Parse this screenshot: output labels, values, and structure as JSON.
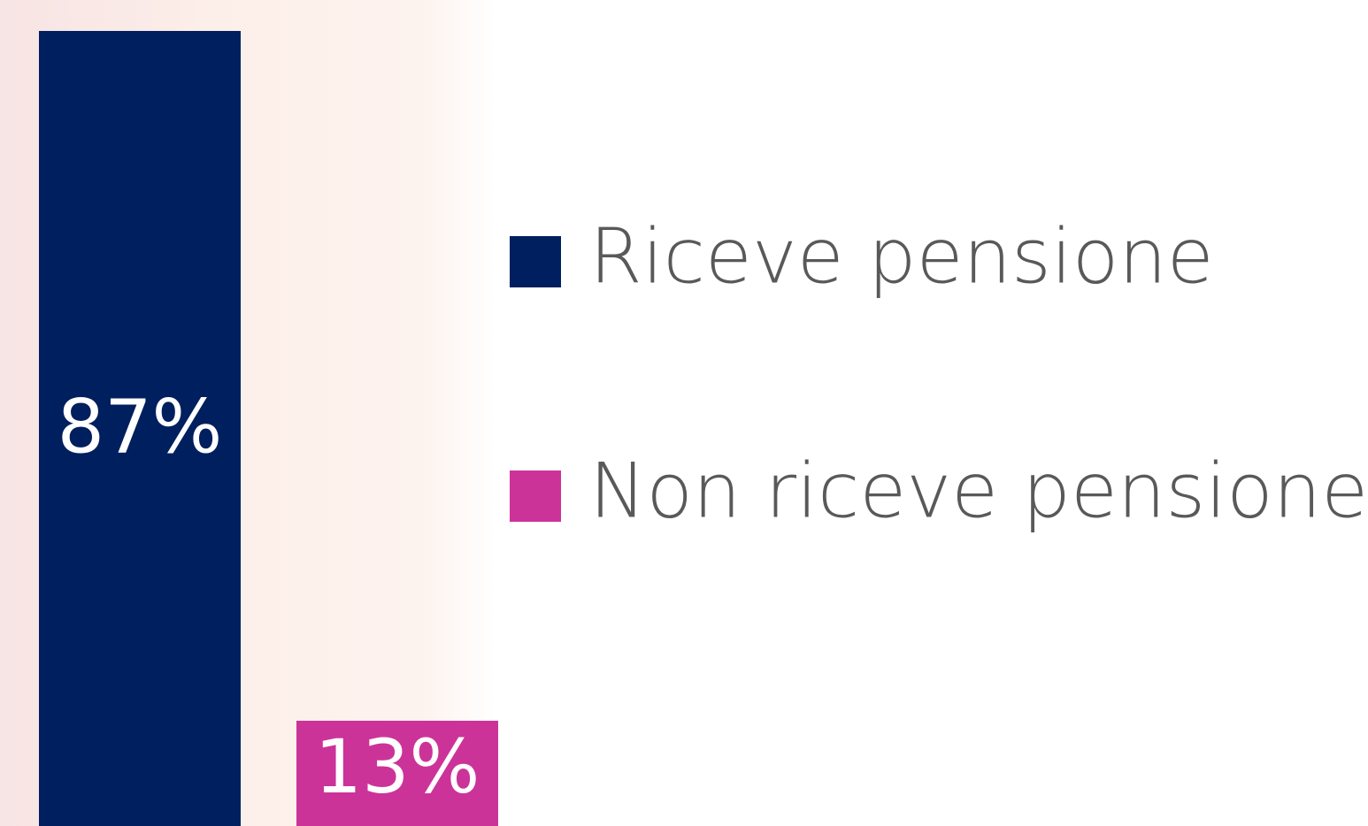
{
  "chart_data": {
    "type": "bar",
    "categories": [
      null
    ],
    "series": [
      {
        "name": "Riceve pensione",
        "color": "#001f5f",
        "values": [
          87
        ],
        "value_labels": [
          "87%"
        ]
      },
      {
        "name": "Non riceve pensione",
        "color": "#cc3399",
        "values": [
          13
        ],
        "value_labels": [
          "13%"
        ]
      }
    ]
  }
}
